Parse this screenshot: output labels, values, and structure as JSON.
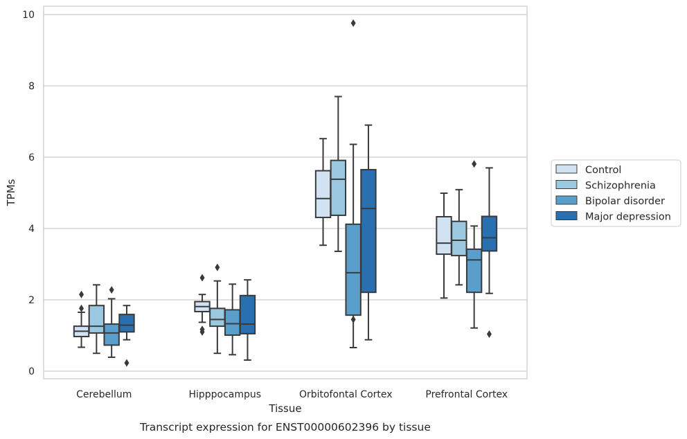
{
  "chart_data": {
    "type": "box",
    "xlabel": "Tissue",
    "ylabel": "TPMs",
    "caption": "Transcript expression for ENST00000602396 by tissue",
    "ylim": [
      -0.25,
      10.25
    ],
    "yticks": [
      0,
      2,
      4,
      6,
      8,
      10
    ],
    "grid": true,
    "legend_position": "right",
    "categories": [
      "Cerebellum",
      "Hipppocampus",
      "Orbitofontal Cortex",
      "Prefrontal Cortex"
    ],
    "series": [
      {
        "name": "Control",
        "color": "#d1e2f2",
        "boxes": [
          {
            "whislo": 0.67,
            "q1": 0.97,
            "med": 1.12,
            "q3": 1.26,
            "whishi": 1.65,
            "fliers": [
              1.76,
              2.15
            ]
          },
          {
            "whislo": 1.37,
            "q1": 1.67,
            "med": 1.81,
            "q3": 1.95,
            "whishi": 2.15,
            "fliers": [
              1.1,
              1.17,
              2.62
            ]
          },
          {
            "whislo": 3.53,
            "q1": 4.31,
            "med": 4.84,
            "q3": 5.62,
            "whishi": 6.52,
            "fliers": []
          },
          {
            "whislo": 2.05,
            "q1": 3.28,
            "med": 3.59,
            "q3": 4.33,
            "whishi": 4.99,
            "fliers": []
          }
        ]
      },
      {
        "name": "Schizophrenia",
        "color": "#9ac8e0",
        "boxes": [
          {
            "whislo": 0.5,
            "q1": 1.07,
            "med": 1.26,
            "q3": 1.84,
            "whishi": 2.42,
            "fliers": []
          },
          {
            "whislo": 0.5,
            "q1": 1.26,
            "med": 1.45,
            "q3": 1.76,
            "whishi": 2.53,
            "fliers": [
              2.91
            ]
          },
          {
            "whislo": 3.36,
            "q1": 4.37,
            "med": 5.38,
            "q3": 5.91,
            "whishi": 7.7,
            "fliers": []
          },
          {
            "whislo": 2.42,
            "q1": 3.24,
            "med": 3.67,
            "q3": 4.2,
            "whishi": 5.09,
            "fliers": []
          }
        ]
      },
      {
        "name": "Bipolar disorder",
        "color": "#5a9ecc",
        "boxes": [
          {
            "whislo": 0.39,
            "q1": 0.73,
            "med": 1.07,
            "q3": 1.32,
            "whishi": 2.03,
            "fliers": [
              2.28
            ]
          },
          {
            "whislo": 0.46,
            "q1": 1.01,
            "med": 1.33,
            "q3": 1.72,
            "whishi": 2.44,
            "fliers": []
          },
          {
            "whislo": 0.66,
            "q1": 1.57,
            "med": 2.76,
            "q3": 4.12,
            "whishi": 6.36,
            "fliers": [
              1.45,
              9.76
            ]
          },
          {
            "whislo": 1.21,
            "q1": 2.21,
            "med": 3.12,
            "q3": 3.42,
            "whishi": 4.07,
            "fliers": [
              5.81
            ]
          }
        ]
      },
      {
        "name": "Major depression",
        "color": "#2a6fb0",
        "boxes": [
          {
            "whislo": 0.88,
            "q1": 1.1,
            "med": 1.29,
            "q3": 1.59,
            "whishi": 1.84,
            "fliers": [
              0.23
            ]
          },
          {
            "whislo": 0.31,
            "q1": 1.05,
            "med": 1.32,
            "q3": 2.12,
            "whishi": 2.56,
            "fliers": []
          },
          {
            "whislo": 0.88,
            "q1": 2.21,
            "med": 4.56,
            "q3": 5.65,
            "whishi": 6.9,
            "fliers": []
          },
          {
            "whislo": 2.18,
            "q1": 3.37,
            "med": 3.74,
            "q3": 4.34,
            "whishi": 5.7,
            "fliers": [
              1.04
            ]
          }
        ]
      }
    ]
  }
}
